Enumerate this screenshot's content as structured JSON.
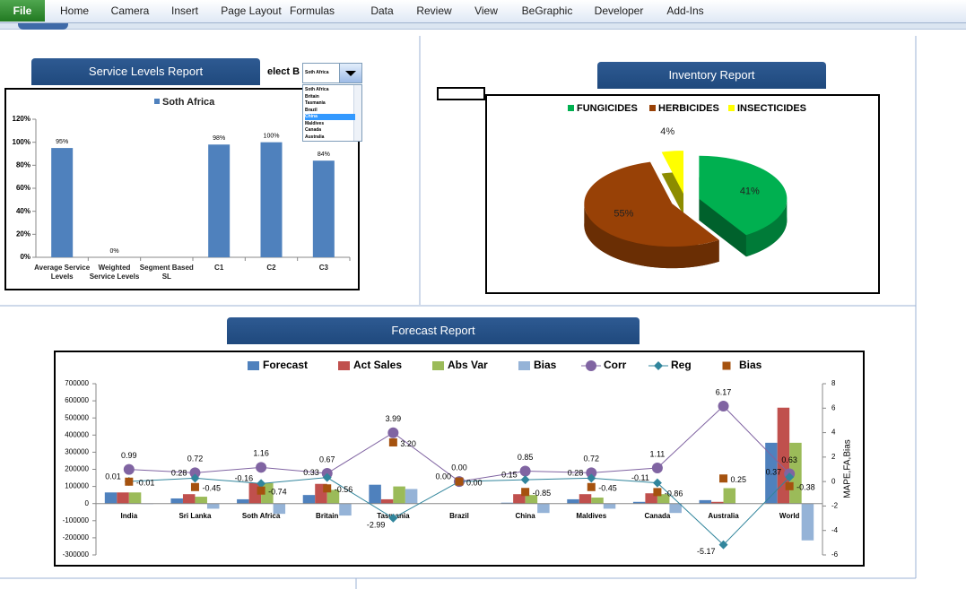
{
  "ribbon": {
    "tabs": [
      "File",
      "Home",
      "Camera",
      "Insert",
      "Page Layout",
      "Formulas",
      "Data",
      "Review",
      "View",
      "BeGraphic",
      "Developer",
      "Add-Ins"
    ]
  },
  "panels": {
    "service_levels": "Service Levels Report",
    "inventory": "Inventory Report",
    "forecast": "Forecast Report"
  },
  "selector": {
    "label": "elect B",
    "selected": "Soth Africa",
    "options": [
      "Soth Africa",
      "Britain",
      "Tasmania",
      "Brazil",
      "China",
      "Maldives",
      "Canada",
      "Australia"
    ],
    "highlighted_index": 4
  },
  "chart_data": [
    {
      "type": "bar",
      "categories": [
        "Average Service Levels",
        "Weighted Service Levels",
        "Segment Based SL",
        "C1",
        "C2",
        "C3"
      ],
      "series": [
        {
          "name": "Soth Africa",
          "color": "#4f81bd",
          "values": [
            95,
            0,
            null,
            98,
            100,
            84
          ],
          "value_labels": [
            "95%",
            "0%",
            null,
            "98%",
            "100%",
            "84%"
          ]
        }
      ],
      "ylim": [
        0,
        120
      ],
      "yticks": [
        {
          "value": 0,
          "label": "0%"
        },
        {
          "value": 20,
          "label": "20%"
        },
        {
          "value": 40,
          "label": "40%"
        },
        {
          "value": 60,
          "label": "60%"
        },
        {
          "value": 80,
          "label": "80%"
        },
        {
          "value": 100,
          "label": "100%"
        },
        {
          "value": 120,
          "label": "120%"
        }
      ],
      "grid": false,
      "legend": "top"
    },
    {
      "type": "pie",
      "categories": [
        "FUNGICIDES",
        "HERBICIDES",
        "INSECTICIDES"
      ],
      "values": [
        41,
        55,
        4
      ],
      "value_labels": [
        "41%",
        "55%",
        "4%"
      ],
      "colors": [
        "#00b050",
        "#984106",
        "#ffff00"
      ],
      "exploded": true,
      "three_d": true,
      "legend": "top"
    },
    {
      "type": "combo",
      "categories": [
        "India",
        "Sri Lanka",
        "Soth Africa",
        "Britain",
        "Tasmania",
        "Brazil",
        "China",
        "Maldives",
        "Canada",
        "Australia",
        "World"
      ],
      "series": [
        {
          "name": "Forecast",
          "type": "bar",
          "axis": "y",
          "color": "#4f81bd",
          "values": [
            65000,
            30000,
            25000,
            50000,
            110000,
            0,
            5000,
            25000,
            10000,
            20000,
            355000
          ]
        },
        {
          "name": "Act Sales",
          "type": "bar",
          "axis": "y",
          "color": "#c0504d",
          "values": [
            65000,
            55000,
            120000,
            115000,
            25000,
            0,
            55000,
            55000,
            60000,
            10000,
            560000
          ]
        },
        {
          "name": "Abs Var",
          "type": "bar",
          "axis": "y",
          "color": "#9bbb59",
          "values": [
            65000,
            40000,
            120000,
            80000,
            100000,
            0,
            50000,
            35000,
            55000,
            90000,
            355000
          ]
        },
        {
          "name": "Bias",
          "type": "bar",
          "axis": "y",
          "color": "#95b3d7",
          "values": [
            -3000,
            -30000,
            -60000,
            -70000,
            85000,
            0,
            -55000,
            -30000,
            -55000,
            0,
            -215000
          ]
        },
        {
          "name": "Corr",
          "type": "line",
          "axis": "y2",
          "color": "#8064a2",
          "marker": "circle",
          "values": [
            0.99,
            0.72,
            1.16,
            0.67,
            3.99,
            0,
            0.85,
            0.72,
            1.11,
            6.17,
            0.63
          ],
          "value_labels": [
            "0.99",
            "0.72",
            "1.16",
            "0.67",
            "3.99",
            "0.00",
            "0.85",
            "0.72",
            "1.11",
            "6.17",
            "0.63"
          ]
        },
        {
          "name": "Reg",
          "type": "line",
          "axis": "y2",
          "color": "#31859c",
          "marker": "diamond",
          "values": [
            0.01,
            0.28,
            -0.16,
            0.33,
            -2.99,
            0,
            0.15,
            0.28,
            -0.11,
            -5.17,
            0.37
          ],
          "value_labels": [
            "0.01",
            "0.28",
            "-0.16",
            "0.33",
            "-2.99",
            "0.00",
            "0.15",
            "0.28",
            "-0.11",
            "-5.17",
            "0.37"
          ]
        },
        {
          "name": "Bias",
          "type": "markers",
          "axis": "y2",
          "color": "#a5520f",
          "marker": "square",
          "values": [
            -0.01,
            -0.45,
            -0.74,
            -0.56,
            3.2,
            0,
            -0.85,
            -0.45,
            -0.86,
            0.25,
            -0.38
          ],
          "value_labels": [
            "-0.01",
            "-0.45",
            "-0.74",
            "-0.56",
            "3.20",
            "0.00",
            "-0.85",
            "-0.45",
            "-0.86",
            "0.25",
            "-0.38"
          ]
        }
      ],
      "ylim": [
        -300000,
        700000
      ],
      "yticks": [
        -300000,
        -200000,
        -100000,
        0,
        100000,
        200000,
        300000,
        400000,
        500000,
        600000,
        700000
      ],
      "y2lim": [
        -6,
        8
      ],
      "y2ticks": [
        -6,
        -4,
        -2,
        0,
        2,
        4,
        6,
        8
      ],
      "y2label": "MAPE,FA,Bias",
      "grid": false,
      "legend": "top"
    }
  ]
}
